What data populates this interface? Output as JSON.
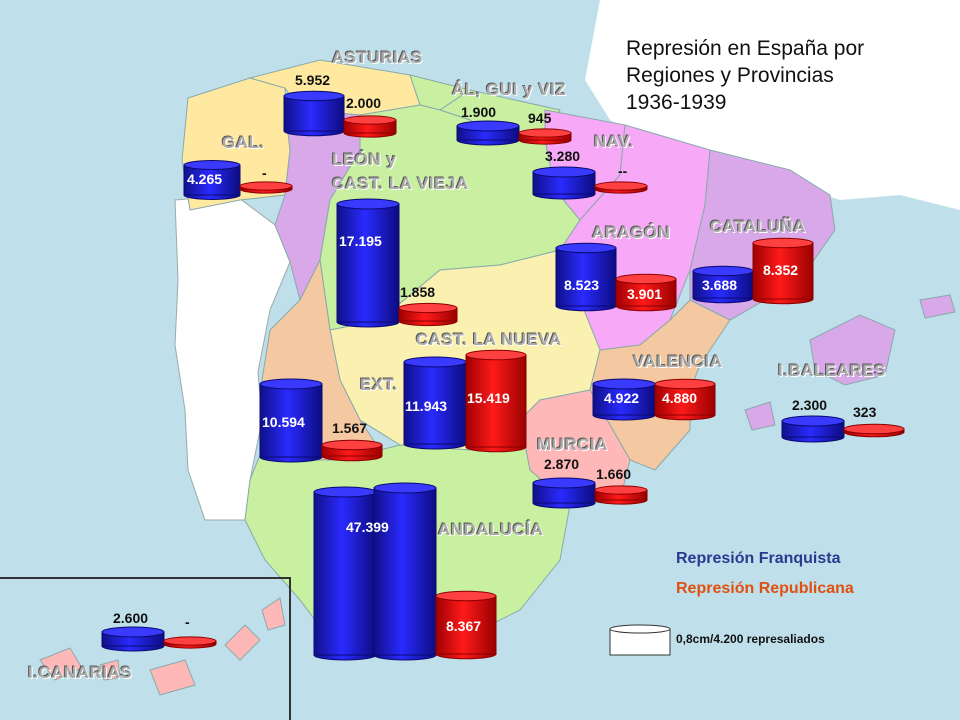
{
  "title": {
    "line1": "Represión en España por",
    "line2": "Regiones y Provincias",
    "line3": "1936-1939"
  },
  "regions": {
    "asturias": "ASTURIAS",
    "alava_gui_viz": "ÁL, GUI y VIZ",
    "galicia": "GAL.",
    "leon": "LEÓN y",
    "cast_vieja": "CAST. LA VIEJA",
    "navarra": "NAV.",
    "aragon": "ARAGÓN",
    "cataluna": "CATALUÑA",
    "cast_nueva": "CAST. LA NUEVA",
    "valencia": "VALENCIA",
    "baleares": "I.BALEARES",
    "extremadura": "EXT.",
    "murcia": "MURCIA",
    "andalucia": "ANDALUCÍA",
    "canarias": "I.CANARIAS"
  },
  "values": {
    "asturias_f": "5.952",
    "asturias_r": "2.000",
    "alava_f": "1.900",
    "alava_r": "945",
    "navarra_f": "3.280",
    "navarra_r": "--",
    "galicia_f": "4.265",
    "galicia_r": "-",
    "leon_f": "17.195",
    "leon_r": "1.858",
    "aragon_f": "8.523",
    "aragon_r": "3.901",
    "cataluna_f": "3.688",
    "cataluna_r": "8.352",
    "cast_nueva_f": "11.943",
    "cast_nueva_r": "15.419",
    "valencia_f": "4.922",
    "valencia_r": "4.880",
    "baleares_f": "2.300",
    "baleares_r": "323",
    "extremadura_f": "10.594",
    "extremadura_r": "1.567",
    "murcia_f": "2.870",
    "murcia_r": "1.660",
    "andalucia_f": "47.399",
    "andalucia_r": "8.367",
    "canarias_f": "2.600",
    "canarias_r": "-"
  },
  "legend": {
    "franquista": "Represión Franquista",
    "republicana": "Represión Republicana",
    "scale": "0,8cm/4.200 represaliados",
    "color_franquista": "#1414d8",
    "color_republicana": "#e01010"
  }
}
